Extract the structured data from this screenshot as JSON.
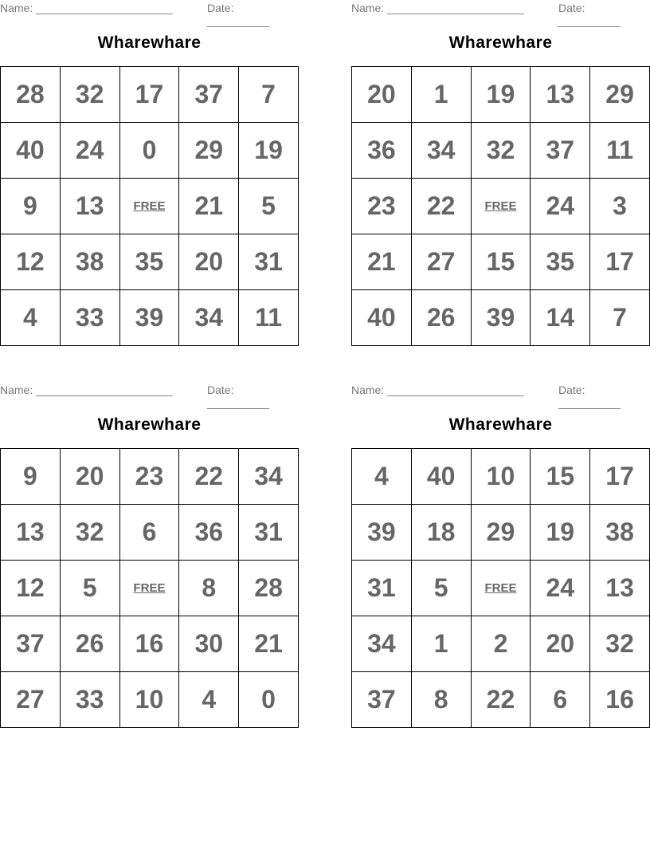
{
  "name_label": "Name: ______________________",
  "date_label": "Date: __________",
  "cards": [
    {
      "title": "Wharewhare",
      "rows": [
        [
          "28",
          "32",
          "17",
          "37",
          "7"
        ],
        [
          "40",
          "24",
          "0",
          "29",
          "19"
        ],
        [
          "9",
          "13",
          "FREE",
          "21",
          "5"
        ],
        [
          "12",
          "38",
          "35",
          "20",
          "31"
        ],
        [
          "4",
          "33",
          "39",
          "34",
          "11"
        ]
      ]
    },
    {
      "title": "Wharewhare",
      "rows": [
        [
          "20",
          "1",
          "19",
          "13",
          "29"
        ],
        [
          "36",
          "34",
          "32",
          "37",
          "11"
        ],
        [
          "23",
          "22",
          "FREE",
          "24",
          "3"
        ],
        [
          "21",
          "27",
          "15",
          "35",
          "17"
        ],
        [
          "40",
          "26",
          "39",
          "14",
          "7"
        ]
      ]
    },
    {
      "title": "Wharewhare",
      "rows": [
        [
          "9",
          "20",
          "23",
          "22",
          "34"
        ],
        [
          "13",
          "32",
          "6",
          "36",
          "31"
        ],
        [
          "12",
          "5",
          "FREE",
          "8",
          "28"
        ],
        [
          "37",
          "26",
          "16",
          "30",
          "21"
        ],
        [
          "27",
          "33",
          "10",
          "4",
          "0"
        ]
      ]
    },
    {
      "title": "Wharewhare",
      "rows": [
        [
          "4",
          "40",
          "10",
          "15",
          "17"
        ],
        [
          "39",
          "18",
          "29",
          "19",
          "38"
        ],
        [
          "31",
          "5",
          "FREE",
          "24",
          "13"
        ],
        [
          "34",
          "1",
          "2",
          "20",
          "32"
        ],
        [
          "37",
          "8",
          "22",
          "6",
          "16"
        ]
      ]
    }
  ]
}
